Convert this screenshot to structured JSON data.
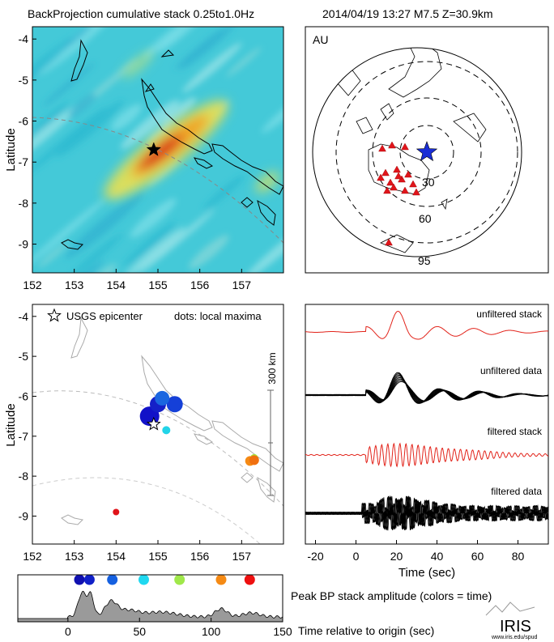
{
  "header": {
    "title": "BackProjection cumulative stack 0.25to1.0Hz",
    "event": "2014/04/19 13:27   M7.5  Z=30.9km"
  },
  "colors": {
    "stack_red": "#e2231a",
    "map_background": "#3cc6d6",
    "star_blue": "#1a2ed6",
    "station_red": "#e0151b",
    "area_gray": "#9a9a9a"
  },
  "chart_data": [
    {
      "type": "heatmap",
      "name": "backprojection-map",
      "ylabel": "Latitude",
      "xlim": [
        152,
        158
      ],
      "ylim": [
        -9.7,
        -3.7
      ],
      "xticks": [
        152,
        153,
        154,
        155,
        156,
        157
      ],
      "yticks": [
        -4,
        -5,
        -6,
        -7,
        -8,
        -9
      ],
      "epicenter": {
        "lon": 154.9,
        "lat": -6.7
      }
    },
    {
      "type": "other",
      "name": "station-map",
      "label": "AU",
      "ring_labels": [
        "30",
        "60",
        "95"
      ],
      "legend_position": "none"
    },
    {
      "type": "scatter",
      "name": "local-maxima-map",
      "ylabel": "Latitude",
      "xlim": [
        152,
        158
      ],
      "ylim": [
        -9.7,
        -3.7
      ],
      "xticks": [
        152,
        153,
        154,
        155,
        156,
        157
      ],
      "yticks": [
        -4,
        -5,
        -6,
        -7,
        -8,
        -9
      ],
      "legend_star": "USGS epicenter",
      "legend_dots": "dots: local maxima",
      "scalebar": "300 km",
      "epicenter": {
        "lon": 154.9,
        "lat": -6.7
      },
      "points": [
        {
          "lon": 154.8,
          "lat": -6.5,
          "color": "#1212c8",
          "size": 12
        },
        {
          "lon": 155.0,
          "lat": -6.2,
          "color": "#1520c8",
          "size": 10
        },
        {
          "lon": 155.4,
          "lat": -6.2,
          "color": "#1540d8",
          "size": 10
        },
        {
          "lon": 155.1,
          "lat": -6.05,
          "color": "#1a66e0",
          "size": 9
        },
        {
          "lon": 155.2,
          "lat": -6.85,
          "color": "#22d4e8",
          "size": 5
        },
        {
          "lon": 157.3,
          "lat": -7.55,
          "color": "#a6e83c",
          "size": 5
        },
        {
          "lon": 157.2,
          "lat": -7.62,
          "color": "#f58a14",
          "size": 6
        },
        {
          "lon": 157.3,
          "lat": -7.6,
          "color": "#f07010",
          "size": 6
        },
        {
          "lon": 154.0,
          "lat": -8.9,
          "color": "#e0141a",
          "size": 4
        }
      ]
    },
    {
      "type": "line",
      "name": "waveform-panel",
      "xlabel": "Time (sec)",
      "xlim": [
        -25,
        95
      ],
      "xticks": [
        -20,
        0,
        20,
        40,
        60,
        80
      ],
      "traces": [
        "unfiltered stack",
        "unfiltered data",
        "filtered stack",
        "filtered data"
      ]
    },
    {
      "type": "area",
      "name": "peak-amplitude",
      "title": "Peak BP stack amplitude (colors = time)",
      "xlabel": "Time relative to origin (sec)",
      "xlim": [
        -35,
        150
      ],
      "xticks": [
        0,
        50,
        100,
        150
      ],
      "peaks": [
        {
          "t": 8,
          "color": "#1010b0"
        },
        {
          "t": 15,
          "color": "#1020c8"
        },
        {
          "t": 31,
          "color": "#1560e0"
        },
        {
          "t": 53,
          "color": "#20d8f0"
        },
        {
          "t": 78,
          "color": "#a0e84a"
        },
        {
          "t": 107,
          "color": "#f58a14"
        },
        {
          "t": 127,
          "color": "#ee1010"
        }
      ]
    }
  ],
  "logo": {
    "name": "IRIS",
    "url_text": "www.iris.edu/spud"
  }
}
